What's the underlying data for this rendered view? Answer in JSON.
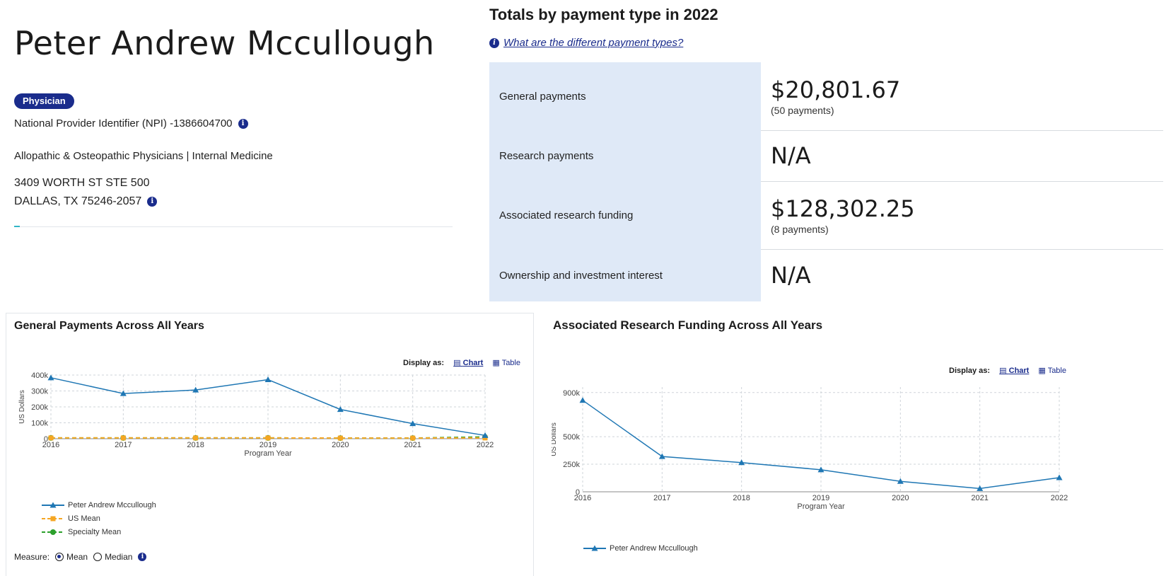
{
  "profile": {
    "name": "Peter Andrew Mccullough",
    "badge": "Physician",
    "npi": "National Provider Identifier (NPI) -1386604700",
    "specialty": "Allopathic & Osteopathic Physicians | Internal Medicine",
    "address_line1": "3409 WORTH ST STE 500",
    "address_line2": "DALLAS, TX 75246-2057"
  },
  "totals": {
    "title": "Totals by payment type in 2022",
    "help_link": "What are the different payment types?",
    "rows": [
      {
        "label": "General payments",
        "amount": "$20,801.67",
        "count": "(50 payments)"
      },
      {
        "label": "Research payments",
        "amount": "N/A",
        "count": ""
      },
      {
        "label": "Associated research funding",
        "amount": "$128,302.25",
        "count": "(8 payments)"
      },
      {
        "label": "Ownership and investment interest",
        "amount": "N/A",
        "count": ""
      }
    ]
  },
  "general_chart": {
    "title": "General Payments Across All Years",
    "display_as": "Display as:",
    "chart_option": "Chart",
    "table_option": "Table",
    "measure_label": "Measure:",
    "mean_option": "Mean",
    "median_option": "Median"
  },
  "research_chart": {
    "title": "Associated Research Funding Across All Years",
    "display_as": "Display as:",
    "chart_option": "Chart",
    "table_option": "Table"
  },
  "chart_data": [
    {
      "type": "line",
      "title": "General Payments Across All Years",
      "xlabel": "Program Year",
      "ylabel": "US Dollars",
      "x": [
        "2016",
        "2017",
        "2018",
        "2019",
        "2020",
        "2021",
        "2022"
      ],
      "ylim": [
        0,
        400000
      ],
      "yticks": [
        {
          "value": 0,
          "label": "0"
        },
        {
          "value": 100000,
          "label": "100k"
        },
        {
          "value": 200000,
          "label": "200k"
        },
        {
          "value": 300000,
          "label": "300k"
        },
        {
          "value": 400000,
          "label": "400k"
        }
      ],
      "grid": true,
      "legend_position": "bottom-left",
      "series": [
        {
          "name": "Peter Andrew Mccullough",
          "values": [
            383000,
            284000,
            306000,
            371000,
            184000,
            95000,
            20801.67
          ],
          "color": "#1f77b4",
          "style": "solid",
          "marker": "triangle"
        },
        {
          "name": "US Mean",
          "values": [
            5000,
            5000,
            5000,
            5000,
            4000,
            4000,
            5000
          ],
          "color": "#f5a623",
          "style": "dashed",
          "marker": "square"
        },
        {
          "name": "Specialty Mean",
          "values": [
            5000,
            5000,
            5000,
            5000,
            4000,
            4000,
            11000
          ],
          "color": "#2ca02c",
          "style": "dashed",
          "marker": "circle"
        }
      ]
    },
    {
      "type": "line",
      "title": "Associated Research Funding Across All Years",
      "xlabel": "Program Year",
      "ylabel": "US Dollars",
      "x": [
        "2016",
        "2017",
        "2018",
        "2019",
        "2020",
        "2021",
        "2022"
      ],
      "ylim": [
        0,
        950000
      ],
      "yticks": [
        {
          "value": 0,
          "label": "0"
        },
        {
          "value": 250000,
          "label": "250k"
        },
        {
          "value": 500000,
          "label": "500k"
        },
        {
          "value": 900000,
          "label": "900k"
        }
      ],
      "grid": true,
      "legend_position": "bottom-left",
      "series": [
        {
          "name": "Peter Andrew Mccullough",
          "values": [
            830000,
            320000,
            265000,
            200000,
            95000,
            30000,
            128302.25
          ],
          "color": "#1f77b4",
          "style": "solid",
          "marker": "triangle"
        }
      ]
    }
  ]
}
